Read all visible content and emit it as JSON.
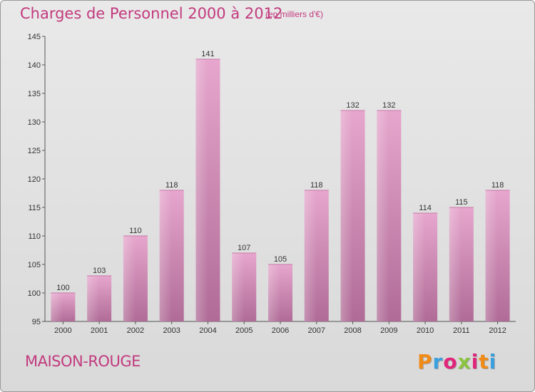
{
  "header": {
    "title": "Charges de Personnel 2000 à 2012",
    "subtitle": "(en milliers d'€)"
  },
  "footer": {
    "commune": "MAISON-ROUGE",
    "logo_text": "Proxiti"
  },
  "colors": {
    "title": "#c23a7e",
    "bar_top": "#e6a6cd",
    "bar_bottom": "#b06c97",
    "background": "#e2e2e2",
    "logo": [
      "#f08b18",
      "#3aa0e0",
      "#e0257a",
      "#8ac43f",
      "#e0257a",
      "#f08b18",
      "#3aa0e0"
    ]
  },
  "chart_data": {
    "type": "bar",
    "title": "Charges de Personnel 2000 à 2012",
    "subtitle": "(en milliers d'€)",
    "categories": [
      "2000",
      "2001",
      "2002",
      "2003",
      "2004",
      "2005",
      "2006",
      "2007",
      "2008",
      "2009",
      "2010",
      "2011",
      "2012"
    ],
    "values": [
      100,
      103,
      110,
      118,
      141,
      107,
      105,
      118,
      132,
      132,
      114,
      115,
      118
    ],
    "data_labels": [
      "100",
      "103",
      "110",
      "118",
      "141",
      "107",
      "105",
      "118",
      "132",
      "132",
      "114",
      "115",
      "118"
    ],
    "ylim": [
      95,
      145
    ],
    "yticks": [
      95,
      100,
      105,
      110,
      115,
      120,
      125,
      130,
      135,
      140,
      145
    ],
    "grid": false,
    "xlabel": "",
    "ylabel": ""
  }
}
